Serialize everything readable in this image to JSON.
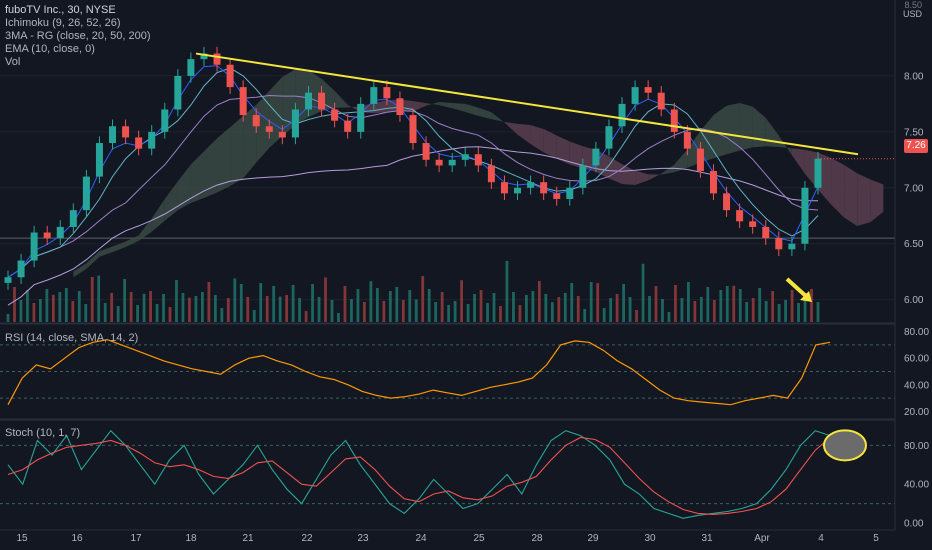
{
  "header": {
    "title": "fuboTV Inc., 30, NYSE",
    "indicators": [
      "Ichimoku (9, 26, 52, 26)",
      "3MA - RG (close, 20, 50, 200)",
      "EMA (10, close, 0)",
      "Vol"
    ],
    "currency": "USD",
    "top_tick": "8.50"
  },
  "rsi_label": "RSI (14, close, SMA, 14, 2)",
  "stoch_label": "Stoch (10, 1, 7)",
  "last_price": "7.26",
  "chart_data": [
    {
      "type": "candlestick",
      "title": "fuboTV Inc., 30, NYSE",
      "ylabel": "USD",
      "ylim": [
        5.8,
        8.5
      ],
      "price_ticks": [
        "8.00",
        "7.50",
        "7.00",
        "6.50",
        "6.00"
      ],
      "x_ticks": [
        "15",
        "16",
        "17",
        "18",
        "21",
        "22",
        "23",
        "24",
        "25",
        "28",
        "29",
        "30",
        "31",
        "Apr",
        "4",
        "5"
      ],
      "close_path": [
        6.2,
        6.35,
        6.6,
        6.55,
        6.65,
        6.8,
        7.1,
        7.4,
        7.55,
        7.45,
        7.35,
        7.5,
        7.7,
        8.0,
        8.15,
        8.2,
        8.1,
        7.9,
        7.65,
        7.55,
        7.5,
        7.45,
        7.7,
        7.85,
        7.7,
        7.6,
        7.5,
        7.75,
        7.9,
        7.8,
        7.65,
        7.4,
        7.25,
        7.2,
        7.25,
        7.3,
        7.2,
        7.05,
        6.95,
        7.0,
        7.05,
        6.95,
        6.9,
        7.0,
        7.2,
        7.35,
        7.55,
        7.75,
        7.9,
        7.85,
        7.7,
        7.5,
        7.35,
        7.15,
        6.95,
        6.8,
        6.7,
        6.65,
        6.55,
        6.45,
        6.5,
        7.0,
        7.26
      ],
      "trendline": {
        "from": 8.2,
        "to": 7.3,
        "color": "#f5e63b"
      },
      "current_price": 7.26,
      "colors": {
        "up": "#26a69a",
        "down": "#ef5350",
        "ema": "#2962ff",
        "ma20": "#5fb3c9",
        "ma50": "#9c7fc9",
        "ma200": "#b39ddb",
        "cloud_bear": "#5a3e4f",
        "cloud_bull": "#3b4a44"
      }
    },
    {
      "type": "line",
      "title": "RSI (14, close, SMA, 14, 2)",
      "ylim": [
        15,
        85
      ],
      "ticks": [
        "80.00",
        "60.00",
        "40.00",
        "20.00"
      ],
      "bands": [
        70,
        50,
        30
      ],
      "values": [
        25,
        45,
        55,
        52,
        60,
        68,
        72,
        74,
        70,
        66,
        62,
        58,
        55,
        52,
        50,
        48,
        55,
        60,
        62,
        58,
        55,
        50,
        46,
        44,
        40,
        35,
        32,
        30,
        31,
        33,
        36,
        34,
        32,
        35,
        38,
        40,
        42,
        45,
        55,
        70,
        73,
        72,
        66,
        58,
        52,
        44,
        36,
        30,
        28,
        27,
        26,
        25,
        28,
        30,
        32,
        30,
        45,
        70,
        72
      ],
      "color": "#ff9800"
    },
    {
      "type": "line",
      "title": "Stoch (10, 1, 7)",
      "ylim": [
        -5,
        105
      ],
      "ticks": [
        "80.00",
        "40.00",
        "0.00"
      ],
      "bands": [
        80,
        20
      ],
      "series": [
        {
          "values": [
            60,
            40,
            85,
            70,
            90,
            55,
            75,
            95,
            80,
            60,
            40,
            65,
            80,
            50,
            30,
            45,
            60,
            80,
            55,
            35,
            20,
            45,
            70,
            85,
            60,
            40,
            20,
            10,
            25,
            45,
            30,
            15,
            20,
            35,
            50,
            30,
            60,
            85,
            95,
            90,
            80,
            65,
            40,
            30,
            15,
            10,
            5,
            8,
            10,
            12,
            15,
            20,
            35,
            55,
            80,
            95,
            90
          ],
          "color": "#26a69a"
        },
        {
          "values": [
            50,
            55,
            65,
            72,
            78,
            80,
            82,
            85,
            80,
            72,
            62,
            58,
            60,
            55,
            48,
            46,
            52,
            62,
            64,
            52,
            40,
            38,
            52,
            66,
            68,
            55,
            38,
            25,
            22,
            30,
            33,
            26,
            24,
            28,
            38,
            42,
            48,
            65,
            80,
            88,
            86,
            78,
            62,
            46,
            32,
            22,
            14,
            10,
            9,
            10,
            12,
            15,
            22,
            35,
            55,
            75,
            88
          ],
          "color": "#ef5350"
        }
      ]
    }
  ]
}
